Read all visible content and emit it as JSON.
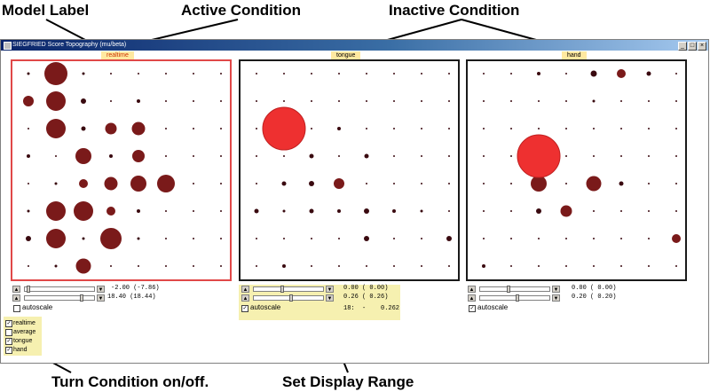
{
  "callouts": {
    "model_label": "Model Label",
    "active_condition": "Active Condition",
    "inactive_condition": "Inactive Condition",
    "turn_condition": "Turn Condition on/off.",
    "set_display_range": "Set Display Range"
  },
  "window": {
    "title": "SIEGFRIED Score Topography",
    "model": "(mu/beta)"
  },
  "colors": {
    "active_border": "#e04848",
    "inactive_border": "#1a1a1a",
    "dot_dark": "#3a0a10",
    "dot_mid": "#7a1a1a",
    "dot_hot": "#ee3030",
    "highlight": "#f6f0b0",
    "label_bg": "#ffe9a0"
  },
  "panels": [
    {
      "label": "realtime",
      "active": true,
      "range_min": "-2.00 (-7.86)",
      "range_max": "18.40 (18.44)",
      "autoscale_label": "autoscale",
      "autoscale": false,
      "readout": "",
      "dots": [
        [
          0,
          0,
          3
        ],
        [
          1,
          0,
          26
        ],
        [
          2,
          0,
          3
        ],
        [
          3,
          0,
          2
        ],
        [
          4,
          0,
          2
        ],
        [
          5,
          0,
          2
        ],
        [
          6,
          0,
          2
        ],
        [
          7,
          0,
          2
        ],
        [
          0,
          1,
          12
        ],
        [
          1,
          1,
          22
        ],
        [
          2,
          1,
          6
        ],
        [
          3,
          1,
          2
        ],
        [
          4,
          1,
          4
        ],
        [
          5,
          1,
          2
        ],
        [
          6,
          1,
          2
        ],
        [
          7,
          1,
          2
        ],
        [
          0,
          2,
          2
        ],
        [
          1,
          2,
          22
        ],
        [
          2,
          2,
          5
        ],
        [
          3,
          2,
          13
        ],
        [
          4,
          2,
          15
        ],
        [
          5,
          2,
          2
        ],
        [
          6,
          2,
          2
        ],
        [
          7,
          2,
          2
        ],
        [
          0,
          3,
          4
        ],
        [
          1,
          3,
          2
        ],
        [
          2,
          3,
          18
        ],
        [
          3,
          3,
          4
        ],
        [
          4,
          3,
          14
        ],
        [
          5,
          3,
          2
        ],
        [
          6,
          3,
          2
        ],
        [
          7,
          3,
          2
        ],
        [
          0,
          4,
          2
        ],
        [
          1,
          4,
          3
        ],
        [
          2,
          4,
          10
        ],
        [
          3,
          4,
          15
        ],
        [
          4,
          4,
          18
        ],
        [
          5,
          4,
          20
        ],
        [
          6,
          4,
          2
        ],
        [
          7,
          4,
          2
        ],
        [
          0,
          5,
          3
        ],
        [
          1,
          5,
          22
        ],
        [
          2,
          5,
          22
        ],
        [
          3,
          5,
          10
        ],
        [
          4,
          5,
          4
        ],
        [
          5,
          5,
          2
        ],
        [
          6,
          5,
          2
        ],
        [
          7,
          5,
          2
        ],
        [
          0,
          6,
          6
        ],
        [
          1,
          6,
          22
        ],
        [
          2,
          6,
          3
        ],
        [
          3,
          6,
          24
        ],
        [
          4,
          6,
          3
        ],
        [
          5,
          6,
          2
        ],
        [
          6,
          6,
          2
        ],
        [
          7,
          6,
          2
        ],
        [
          0,
          7,
          2
        ],
        [
          1,
          7,
          3
        ],
        [
          2,
          7,
          17
        ],
        [
          3,
          7,
          2
        ],
        [
          4,
          7,
          2
        ],
        [
          5,
          7,
          2
        ],
        [
          6,
          7,
          2
        ],
        [
          7,
          7,
          2
        ]
      ],
      "hot": []
    },
    {
      "label": "tongue",
      "active": false,
      "range_min": "0.00 ( 0.00)",
      "range_max": "0.26 ( 0.26)",
      "autoscale_label": "autoscale",
      "autoscale": true,
      "readout": "18:  -    0.262",
      "dots": [
        [
          0,
          0,
          2
        ],
        [
          1,
          0,
          2
        ],
        [
          2,
          0,
          2
        ],
        [
          3,
          0,
          2
        ],
        [
          4,
          0,
          2
        ],
        [
          5,
          0,
          2
        ],
        [
          6,
          0,
          2
        ],
        [
          7,
          0,
          2
        ],
        [
          0,
          1,
          2
        ],
        [
          1,
          1,
          2
        ],
        [
          2,
          1,
          2
        ],
        [
          3,
          1,
          2
        ],
        [
          4,
          1,
          2
        ],
        [
          5,
          1,
          2
        ],
        [
          6,
          1,
          2
        ],
        [
          7,
          1,
          2
        ],
        [
          0,
          2,
          2
        ],
        [
          1,
          2,
          2
        ],
        [
          2,
          2,
          2
        ],
        [
          3,
          2,
          4
        ],
        [
          4,
          2,
          2
        ],
        [
          5,
          2,
          2
        ],
        [
          6,
          2,
          2
        ],
        [
          7,
          2,
          2
        ],
        [
          0,
          3,
          2
        ],
        [
          1,
          3,
          2
        ],
        [
          2,
          3,
          5
        ],
        [
          3,
          3,
          2
        ],
        [
          4,
          3,
          5
        ],
        [
          5,
          3,
          2
        ],
        [
          6,
          3,
          2
        ],
        [
          7,
          3,
          2
        ],
        [
          0,
          4,
          2
        ],
        [
          1,
          4,
          5
        ],
        [
          2,
          4,
          6
        ],
        [
          3,
          4,
          12
        ],
        [
          4,
          4,
          2
        ],
        [
          5,
          4,
          2
        ],
        [
          6,
          4,
          2
        ],
        [
          7,
          4,
          2
        ],
        [
          0,
          5,
          5
        ],
        [
          1,
          5,
          3
        ],
        [
          2,
          5,
          5
        ],
        [
          3,
          5,
          4
        ],
        [
          4,
          5,
          6
        ],
        [
          5,
          5,
          4
        ],
        [
          6,
          5,
          3
        ],
        [
          7,
          5,
          2
        ],
        [
          0,
          6,
          2
        ],
        [
          1,
          6,
          2
        ],
        [
          2,
          6,
          2
        ],
        [
          3,
          6,
          2
        ],
        [
          4,
          6,
          6
        ],
        [
          5,
          6,
          2
        ],
        [
          6,
          6,
          2
        ],
        [
          7,
          6,
          6
        ],
        [
          0,
          7,
          2
        ],
        [
          1,
          7,
          4
        ],
        [
          2,
          7,
          2
        ],
        [
          3,
          7,
          2
        ],
        [
          4,
          7,
          2
        ],
        [
          5,
          7,
          2
        ],
        [
          6,
          7,
          2
        ],
        [
          7,
          7,
          2
        ]
      ],
      "hot": [
        [
          1,
          2,
          48
        ]
      ]
    },
    {
      "label": "hand",
      "active": false,
      "range_min": "0.00 ( 0.00)",
      "range_max": "0.20 ( 0.20)",
      "autoscale_label": "autoscale",
      "autoscale": true,
      "readout": "",
      "dots": [
        [
          0,
          0,
          2
        ],
        [
          1,
          0,
          2
        ],
        [
          2,
          0,
          4
        ],
        [
          3,
          0,
          2
        ],
        [
          4,
          0,
          7
        ],
        [
          5,
          0,
          10
        ],
        [
          6,
          0,
          5
        ],
        [
          7,
          0,
          2
        ],
        [
          0,
          1,
          2
        ],
        [
          1,
          1,
          2
        ],
        [
          2,
          1,
          2
        ],
        [
          3,
          1,
          2
        ],
        [
          4,
          1,
          3
        ],
        [
          5,
          1,
          2
        ],
        [
          6,
          1,
          2
        ],
        [
          7,
          1,
          2
        ],
        [
          0,
          2,
          2
        ],
        [
          1,
          2,
          2
        ],
        [
          2,
          2,
          2
        ],
        [
          3,
          2,
          2
        ],
        [
          4,
          2,
          2
        ],
        [
          5,
          2,
          2
        ],
        [
          6,
          2,
          2
        ],
        [
          7,
          2,
          2
        ],
        [
          0,
          3,
          2
        ],
        [
          1,
          3,
          2
        ],
        [
          2,
          3,
          2
        ],
        [
          3,
          3,
          2
        ],
        [
          4,
          3,
          2
        ],
        [
          5,
          3,
          2
        ],
        [
          6,
          3,
          2
        ],
        [
          7,
          3,
          2
        ],
        [
          0,
          4,
          2
        ],
        [
          1,
          4,
          2
        ],
        [
          2,
          4,
          18
        ],
        [
          3,
          4,
          2
        ],
        [
          4,
          4,
          17
        ],
        [
          5,
          4,
          5
        ],
        [
          6,
          4,
          2
        ],
        [
          7,
          4,
          2
        ],
        [
          0,
          5,
          2
        ],
        [
          1,
          5,
          2
        ],
        [
          2,
          5,
          6
        ],
        [
          3,
          5,
          13
        ],
        [
          4,
          5,
          2
        ],
        [
          5,
          5,
          2
        ],
        [
          6,
          5,
          2
        ],
        [
          7,
          5,
          2
        ],
        [
          0,
          6,
          2
        ],
        [
          1,
          6,
          2
        ],
        [
          2,
          6,
          2
        ],
        [
          3,
          6,
          2
        ],
        [
          4,
          6,
          2
        ],
        [
          5,
          6,
          2
        ],
        [
          6,
          6,
          2
        ],
        [
          7,
          6,
          10
        ],
        [
          0,
          7,
          4
        ],
        [
          1,
          7,
          2
        ],
        [
          2,
          7,
          2
        ],
        [
          3,
          7,
          2
        ],
        [
          4,
          7,
          2
        ],
        [
          5,
          7,
          2
        ],
        [
          6,
          7,
          2
        ],
        [
          7,
          7,
          2
        ]
      ],
      "hot": [
        [
          2,
          3,
          48
        ]
      ]
    }
  ],
  "conditions": [
    {
      "label": "realtime",
      "checked": true
    },
    {
      "label": "average",
      "checked": false
    },
    {
      "label": "tongue",
      "checked": true
    },
    {
      "label": "hand",
      "checked": true
    }
  ]
}
